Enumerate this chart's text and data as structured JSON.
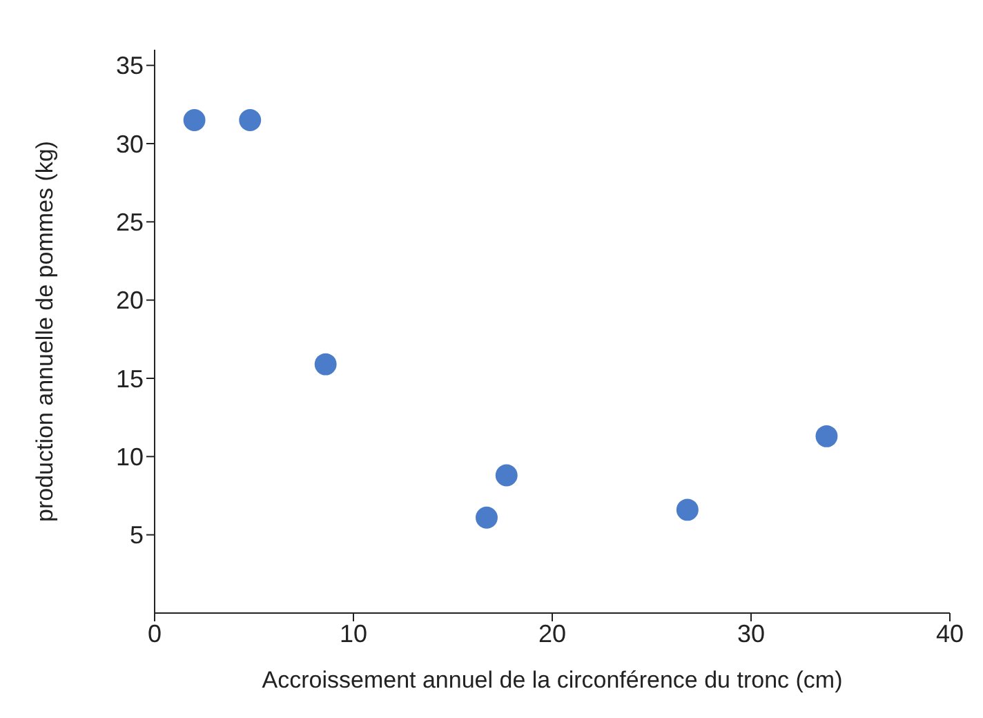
{
  "chart_data": {
    "type": "scatter",
    "xlabel": "Accroissement annuel de la circonférence du tronc  (cm)",
    "ylabel": "production  annuelle de pommes (kg)",
    "x": [
      2,
      4.8,
      8.6,
      16.7,
      17.7,
      26.8,
      33.8
    ],
    "series": [
      {
        "color": "#4a7cc9",
        "values": [
          31.5,
          31.5,
          15.9,
          6.1,
          8.8,
          6.6,
          11.3
        ]
      }
    ],
    "xlim": [
      0,
      40
    ],
    "xticks": [
      0,
      10,
      20,
      30,
      40
    ],
    "ylim": [
      0,
      36
    ],
    "yticks": [
      5,
      10,
      15,
      20,
      25,
      30,
      35
    ],
    "grid": false,
    "legend": false,
    "marker": "circle"
  }
}
